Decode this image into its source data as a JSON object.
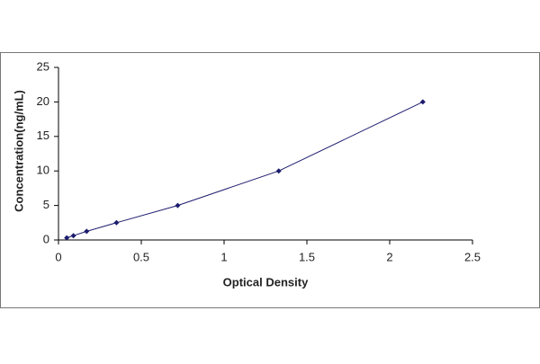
{
  "chart_data": {
    "type": "line",
    "x_label": "Optical Density",
    "y_label": "Concentration(ng/mL)",
    "x": [
      0.05,
      0.09,
      0.17,
      0.35,
      0.72,
      1.33,
      2.2
    ],
    "values": [
      0.31,
      0.625,
      1.25,
      2.5,
      5,
      10,
      20
    ],
    "color": "#1c1c6e",
    "markers": true,
    "xlim": [
      0,
      2.5
    ],
    "xticks": [
      0,
      0.5,
      1,
      1.5,
      2,
      2.5
    ],
    "ylim": [
      0,
      25
    ],
    "yticks": [
      0,
      5,
      10,
      15,
      20,
      25
    ],
    "grid": false
  }
}
